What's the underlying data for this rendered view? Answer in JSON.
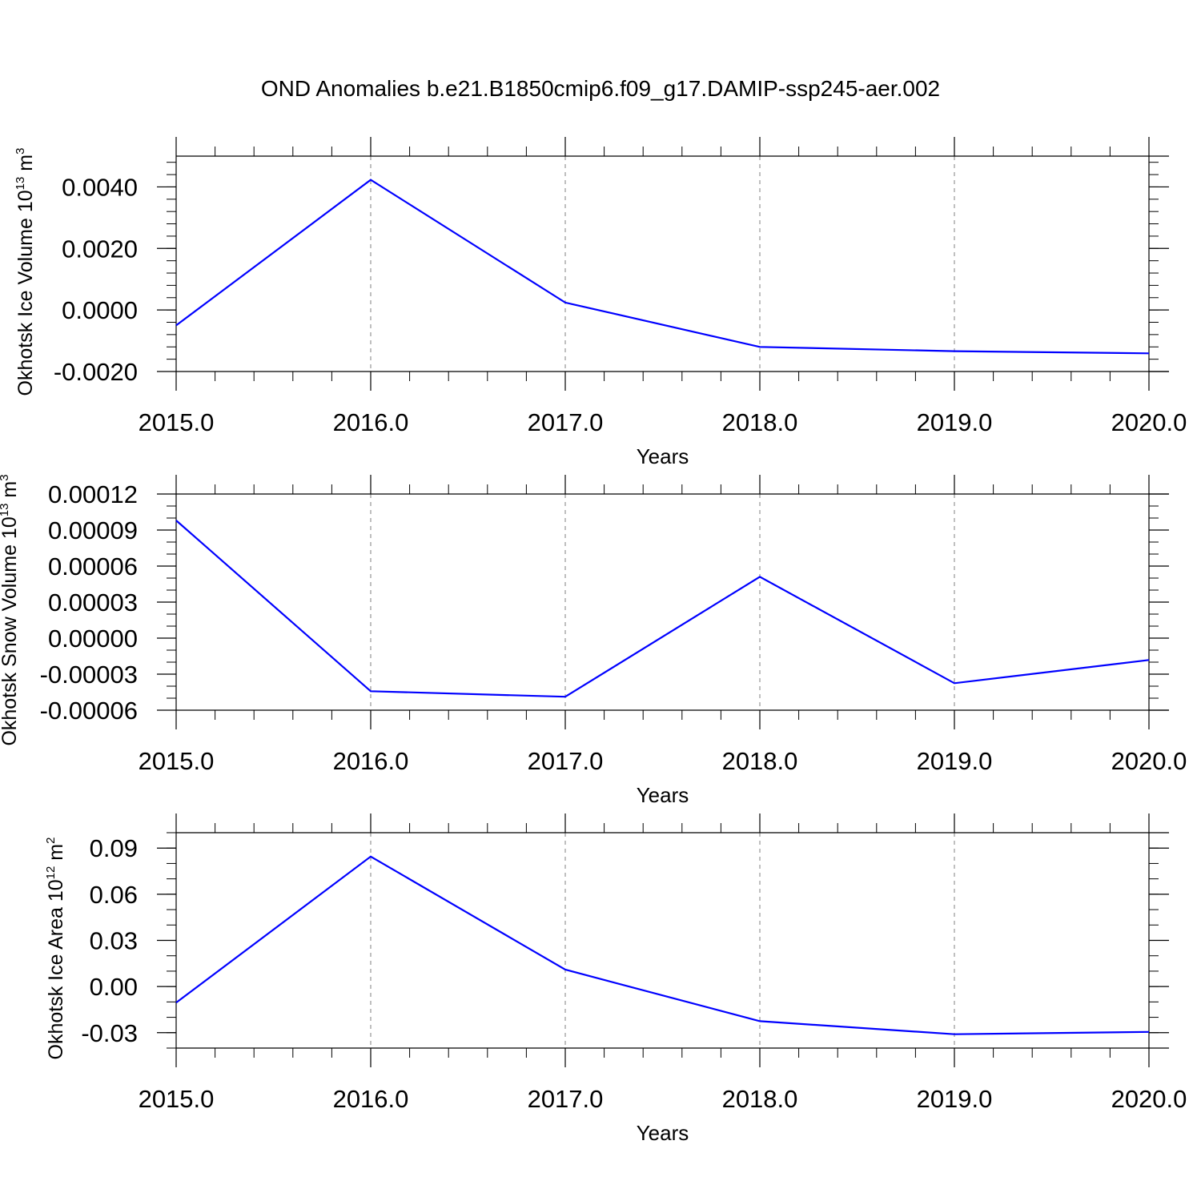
{
  "title": "OND Anomalies b.e21.B1850cmip6.f09_g17.DAMIP-ssp245-aer.002",
  "style": {
    "line_color": "#0000ff",
    "axis_color": "#000000",
    "grid_color": "#808080"
  },
  "chart_data": [
    {
      "type": "line",
      "xlabel": "Years",
      "ylabel": {
        "text": "Okhotsk Ice Volume 10",
        "exponent": "13",
        "unit": " m",
        "unit_exponent": "3"
      },
      "x": [
        2015,
        2016,
        2017,
        2018,
        2019,
        2020
      ],
      "x_ticks": [
        2015,
        2016,
        2017,
        2018,
        2019,
        2020
      ],
      "x_tick_labels": [
        "2015.0",
        "2016.0",
        "2017.0",
        "2018.0",
        "2019.0",
        "2020.0"
      ],
      "xlim": [
        2015,
        2020
      ],
      "ylim": [
        -0.002,
        0.005
      ],
      "y_ticks": [
        0.004,
        0.002,
        0.0,
        -0.002
      ],
      "y_tick_labels": [
        "0.0040",
        "0.0020",
        "0.0000",
        "-0.0020"
      ],
      "y_minor_step": 0.0004,
      "grid": "vertical dashed at major x ticks",
      "series": [
        {
          "values": [
            -0.0005,
            0.00423,
            0.00024,
            -0.0012,
            -0.00134,
            -0.00141
          ]
        }
      ]
    },
    {
      "type": "line",
      "xlabel": "Years",
      "ylabel": {
        "text": "Okhotsk Snow Volume 10",
        "exponent": "13",
        "unit": " m",
        "unit_exponent": "3"
      },
      "x": [
        2015,
        2016,
        2017,
        2018,
        2019,
        2020
      ],
      "x_ticks": [
        2015,
        2016,
        2017,
        2018,
        2019,
        2020
      ],
      "x_tick_labels": [
        "2015.0",
        "2016.0",
        "2017.0",
        "2018.0",
        "2019.0",
        "2020.0"
      ],
      "xlim": [
        2015,
        2020
      ],
      "ylim": [
        -6e-05,
        0.00012
      ],
      "y_ticks": [
        0.00012,
        9e-05,
        6e-05,
        3e-05,
        0.0,
        -3e-05,
        -6e-05
      ],
      "y_tick_labels": [
        "0.00012",
        "0.00009",
        "0.00006",
        "0.00003",
        "0.00000",
        "-0.00003",
        "-0.00006"
      ],
      "y_minor_step": 1e-05,
      "grid": "vertical dashed at major x ticks",
      "series": [
        {
          "values": [
            9.8e-05,
            -4.42e-05,
            -4.88e-05,
            5.11e-05,
            -3.75e-05,
            -1.82e-05
          ]
        }
      ]
    },
    {
      "type": "line",
      "xlabel": "Years",
      "ylabel": {
        "text": "Okhotsk Ice Area 10",
        "exponent": "12",
        "unit": " m",
        "unit_exponent": "2"
      },
      "x": [
        2015,
        2016,
        2017,
        2018,
        2019,
        2020
      ],
      "x_ticks": [
        2015,
        2016,
        2017,
        2018,
        2019,
        2020
      ],
      "x_tick_labels": [
        "2015.0",
        "2016.0",
        "2017.0",
        "2018.0",
        "2019.0",
        "2020.0"
      ],
      "xlim": [
        2015,
        2020
      ],
      "ylim": [
        -0.04,
        0.1
      ],
      "y_ticks": [
        0.09,
        0.06,
        0.03,
        0.0,
        -0.03
      ],
      "y_tick_labels": [
        "0.09",
        "0.06",
        "0.03",
        "0.00",
        "-0.03"
      ],
      "y_minor_step": 0.01,
      "grid": "vertical dashed at major x ticks",
      "series": [
        {
          "values": [
            -0.0105,
            0.0845,
            0.011,
            -0.0225,
            -0.031,
            -0.0295
          ]
        }
      ]
    }
  ]
}
